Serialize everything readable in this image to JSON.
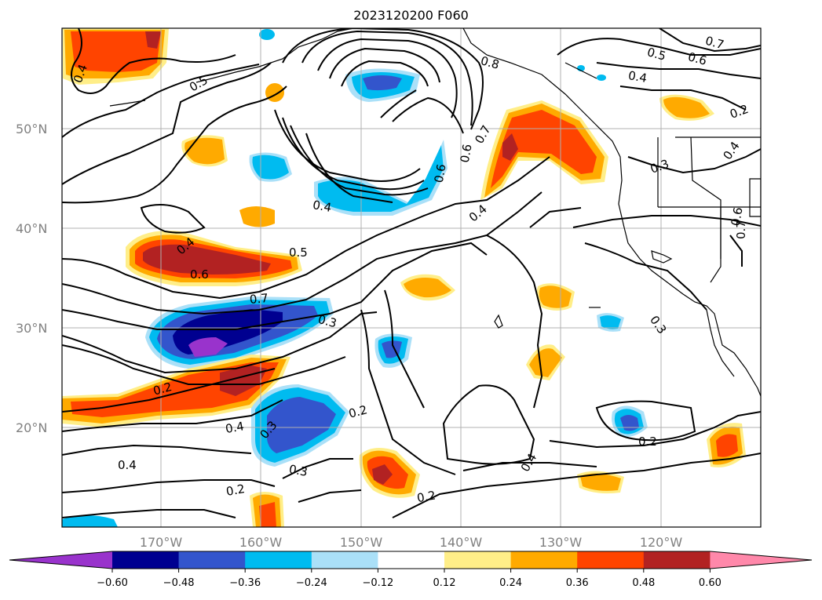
{
  "title": "2023120200 F060",
  "lat_labels": [
    "50°N",
    "40°N",
    "30°N",
    "20°N"
  ],
  "lon_labels": [
    "170°W",
    "160°W",
    "150°W",
    "140°W",
    "130°W",
    "120°W"
  ],
  "contour_labels": [
    "0.4",
    "0.5",
    "0.6",
    "0.7",
    "0.4",
    "0.5",
    "0.6",
    "0.7",
    "0.6",
    "0.4",
    "0.3",
    "0.4",
    "0.8",
    "0.7",
    "0.6",
    "0.4",
    "0.4",
    "0.5",
    "0.6",
    "0.7",
    "0.3",
    "0.3",
    "0.2",
    "0.4",
    "0.3",
    "0.2",
    "0.3",
    "0.4",
    "0.2",
    "0.4",
    "0.2",
    "0.2",
    "0.2"
  ],
  "colorbar": {
    "ticks": [
      "−0.60",
      "−0.48",
      "−0.36",
      "−0.24",
      "−0.12",
      "0.12",
      "0.24",
      "0.36",
      "0.48",
      "0.60"
    ],
    "colors": [
      "#9933cc",
      "#000090",
      "#3355cc",
      "#00bbf0",
      "#aae0f8",
      "#ffffff",
      "#ffee88",
      "#ffaa00",
      "#ff4400",
      "#b22222",
      "#ff88aa"
    ]
  },
  "colors": {
    "grid": "#b0b0b0",
    "contour": "#000000",
    "axis_label": "#808080"
  }
}
